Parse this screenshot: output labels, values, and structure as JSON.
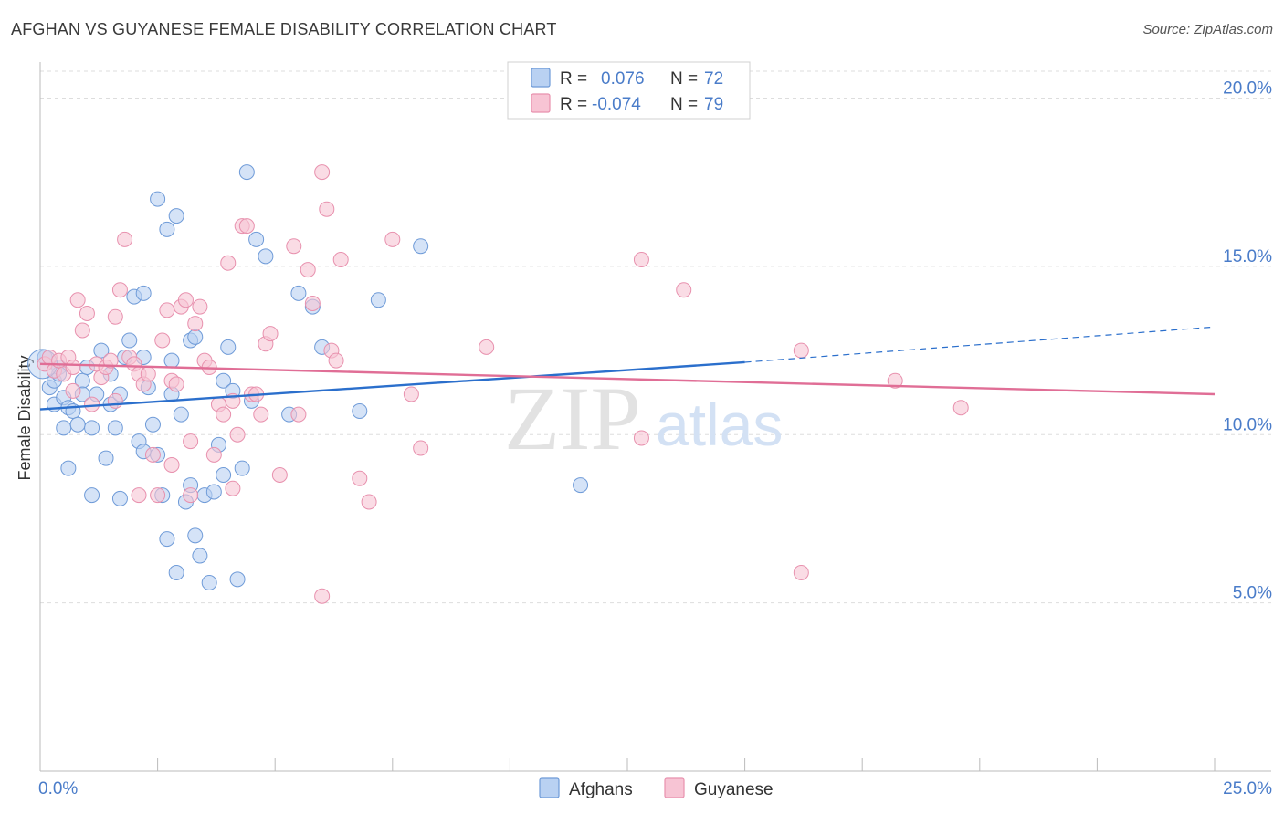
{
  "title": "AFGHAN VS GUYANESE FEMALE DISABILITY CORRELATION CHART",
  "source": "Source: ZipAtlas.com",
  "watermark": {
    "zip": "ZIP",
    "atlas": "atlas"
  },
  "colors": {
    "afghans_fill": "#b9d1f2",
    "afghans_stroke": "#6f9bd8",
    "afghans_line": "#2b6fcc",
    "guyanese_fill": "#f7c4d4",
    "guyanese_stroke": "#e891ae",
    "guyanese_line": "#e06e96",
    "tick_label": "#4a7cc9",
    "grid": "#dddddd"
  },
  "stats_legend": {
    "rows": [
      {
        "r_label": "R =",
        "r_value": "0.076",
        "n_label": "N =",
        "n_value": "72"
      },
      {
        "r_label": "R =",
        "r_value": "-0.074",
        "n_label": "N =",
        "n_value": "79"
      }
    ]
  },
  "chart_data": {
    "type": "scatter",
    "title": "AFGHAN VS GUYANESE FEMALE DISABILITY CORRELATION CHART",
    "xlabel": "",
    "ylabel": "Female Disability",
    "xlim": [
      0,
      25
    ],
    "ylim": [
      0,
      20.8
    ],
    "x_tick_labels": [
      {
        "value": 0,
        "label": "0.0%"
      },
      {
        "value": 25,
        "label": "25.0%"
      }
    ],
    "y_tick_labels": [
      {
        "value": 5,
        "label": "5.0%"
      },
      {
        "value": 10,
        "label": "10.0%"
      },
      {
        "value": 15,
        "label": "15.0%"
      },
      {
        "value": 20,
        "label": "20.0%"
      }
    ],
    "grid": true,
    "legend": [
      "Afghans",
      "Guyanese"
    ],
    "series": [
      {
        "name": "Afghans",
        "trend": {
          "x0": 0,
          "y0": 10.75,
          "x1": 15,
          "y1": 12.15,
          "dash_to_x": 25,
          "dash_to_y": 13.2
        },
        "points": [
          [
            0.1,
            12.3
          ],
          [
            0.2,
            11.4
          ],
          [
            0.3,
            11.6
          ],
          [
            0.4,
            12.0
          ],
          [
            0.3,
            10.9
          ],
          [
            0.5,
            11.1
          ],
          [
            0.5,
            10.2
          ],
          [
            0.6,
            10.8
          ],
          [
            0.7,
            10.7
          ],
          [
            0.6,
            9.0
          ],
          [
            0.8,
            10.3
          ],
          [
            0.9,
            11.6
          ],
          [
            0.9,
            11.2
          ],
          [
            1.0,
            12.0
          ],
          [
            1.1,
            10.2
          ],
          [
            1.1,
            8.2
          ],
          [
            1.2,
            11.2
          ],
          [
            1.3,
            12.5
          ],
          [
            1.4,
            9.3
          ],
          [
            1.5,
            11.8
          ],
          [
            1.5,
            10.9
          ],
          [
            1.6,
            10.2
          ],
          [
            1.7,
            8.1
          ],
          [
            1.7,
            11.2
          ],
          [
            1.8,
            12.3
          ],
          [
            1.9,
            12.8
          ],
          [
            2.0,
            14.1
          ],
          [
            2.1,
            9.8
          ],
          [
            2.2,
            12.3
          ],
          [
            2.2,
            9.5
          ],
          [
            2.2,
            14.2
          ],
          [
            2.3,
            11.4
          ],
          [
            2.4,
            10.3
          ],
          [
            2.5,
            9.4
          ],
          [
            2.5,
            17.0
          ],
          [
            2.6,
            8.2
          ],
          [
            2.7,
            6.9
          ],
          [
            2.7,
            16.1
          ],
          [
            2.8,
            12.2
          ],
          [
            2.8,
            11.2
          ],
          [
            2.9,
            5.9
          ],
          [
            3.0,
            10.6
          ],
          [
            3.1,
            8.0
          ],
          [
            3.2,
            8.5
          ],
          [
            3.2,
            12.8
          ],
          [
            3.3,
            12.9
          ],
          [
            3.3,
            7.0
          ],
          [
            3.4,
            6.4
          ],
          [
            3.5,
            8.2
          ],
          [
            3.6,
            5.6
          ],
          [
            3.7,
            8.3
          ],
          [
            3.8,
            9.7
          ],
          [
            3.9,
            11.6
          ],
          [
            3.9,
            8.8
          ],
          [
            4.0,
            12.6
          ],
          [
            4.1,
            11.3
          ],
          [
            4.2,
            5.7
          ],
          [
            4.3,
            9.0
          ],
          [
            4.4,
            17.8
          ],
          [
            4.5,
            11.0
          ],
          [
            4.6,
            15.8
          ],
          [
            4.8,
            15.3
          ],
          [
            5.5,
            14.2
          ],
          [
            5.8,
            13.8
          ],
          [
            5.3,
            10.6
          ],
          [
            6.0,
            12.6
          ],
          [
            6.8,
            10.7
          ],
          [
            7.2,
            14.0
          ],
          [
            8.1,
            15.6
          ],
          [
            11.5,
            8.5
          ],
          [
            2.9,
            16.5
          ],
          [
            0.4,
            11.8
          ]
        ]
      },
      {
        "name": "Guyanese",
        "trend": {
          "x0": 0,
          "y0": 12.1,
          "x1": 25,
          "y1": 11.2
        },
        "points": [
          [
            0.1,
            12.1
          ],
          [
            0.2,
            12.3
          ],
          [
            0.3,
            11.9
          ],
          [
            0.4,
            12.2
          ],
          [
            0.5,
            11.8
          ],
          [
            0.6,
            12.3
          ],
          [
            0.7,
            12.0
          ],
          [
            0.7,
            11.3
          ],
          [
            0.8,
            14.0
          ],
          [
            0.9,
            13.1
          ],
          [
            1.0,
            13.6
          ],
          [
            1.1,
            10.9
          ],
          [
            1.2,
            12.1
          ],
          [
            1.3,
            11.7
          ],
          [
            1.4,
            12.0
          ],
          [
            1.5,
            12.2
          ],
          [
            1.6,
            11.0
          ],
          [
            1.6,
            13.5
          ],
          [
            1.7,
            14.3
          ],
          [
            1.8,
            15.8
          ],
          [
            1.9,
            12.3
          ],
          [
            2.0,
            12.1
          ],
          [
            2.1,
            8.2
          ],
          [
            2.1,
            11.8
          ],
          [
            2.2,
            11.5
          ],
          [
            2.3,
            11.8
          ],
          [
            2.4,
            9.4
          ],
          [
            2.5,
            8.2
          ],
          [
            2.6,
            12.8
          ],
          [
            2.7,
            13.7
          ],
          [
            2.8,
            11.6
          ],
          [
            2.8,
            9.1
          ],
          [
            2.9,
            11.5
          ],
          [
            3.0,
            13.8
          ],
          [
            3.1,
            14.0
          ],
          [
            3.2,
            9.8
          ],
          [
            3.2,
            8.2
          ],
          [
            3.3,
            13.3
          ],
          [
            3.4,
            13.8
          ],
          [
            3.5,
            12.2
          ],
          [
            3.6,
            12.0
          ],
          [
            3.7,
            9.4
          ],
          [
            3.8,
            10.9
          ],
          [
            3.9,
            10.6
          ],
          [
            4.0,
            15.1
          ],
          [
            4.1,
            11.0
          ],
          [
            4.1,
            8.4
          ],
          [
            4.2,
            10.0
          ],
          [
            4.3,
            16.2
          ],
          [
            4.4,
            16.2
          ],
          [
            4.5,
            11.2
          ],
          [
            4.6,
            11.2
          ],
          [
            4.7,
            10.6
          ],
          [
            4.8,
            12.7
          ],
          [
            4.9,
            13.0
          ],
          [
            5.1,
            8.8
          ],
          [
            5.4,
            15.6
          ],
          [
            5.5,
            10.6
          ],
          [
            5.7,
            14.9
          ],
          [
            5.8,
            13.9
          ],
          [
            6.0,
            17.8
          ],
          [
            6.1,
            16.7
          ],
          [
            6.2,
            12.5
          ],
          [
            6.3,
            12.2
          ],
          [
            6.4,
            15.2
          ],
          [
            6.8,
            8.7
          ],
          [
            7.0,
            8.0
          ],
          [
            7.5,
            15.8
          ],
          [
            7.9,
            11.2
          ],
          [
            8.1,
            9.6
          ],
          [
            9.5,
            12.6
          ],
          [
            12.8,
            9.9
          ],
          [
            12.8,
            15.2
          ],
          [
            13.7,
            14.3
          ],
          [
            16.2,
            12.5
          ],
          [
            18.2,
            11.6
          ],
          [
            19.6,
            10.8
          ],
          [
            16.2,
            5.9
          ],
          [
            6.0,
            5.2
          ]
        ]
      }
    ]
  }
}
